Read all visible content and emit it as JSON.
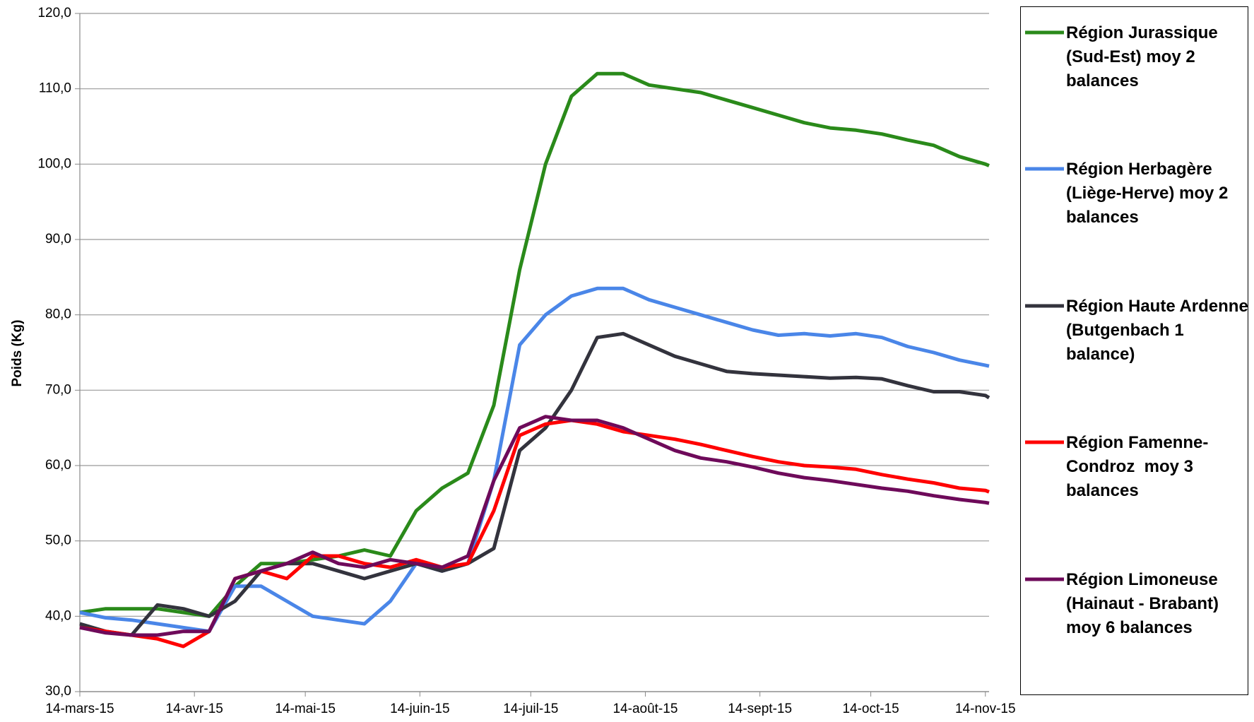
{
  "chart_data": {
    "type": "line",
    "y_label": "Poids (Kg)",
    "x": [
      "2015-03-14",
      "2015-03-21",
      "2015-03-28",
      "2015-04-04",
      "2015-04-11",
      "2015-04-18",
      "2015-04-25",
      "2015-05-02",
      "2015-05-09",
      "2015-05-16",
      "2015-05-23",
      "2015-05-30",
      "2015-06-06",
      "2015-06-13",
      "2015-06-20",
      "2015-06-27",
      "2015-07-04",
      "2015-07-11",
      "2015-07-18",
      "2015-07-25",
      "2015-08-01",
      "2015-08-08",
      "2015-08-15",
      "2015-08-22",
      "2015-08-29",
      "2015-09-05",
      "2015-09-12",
      "2015-09-19",
      "2015-09-26",
      "2015-10-03",
      "2015-10-10",
      "2015-10-17",
      "2015-10-24",
      "2015-10-31",
      "2015-11-07",
      "2015-11-14",
      "2015-11-15"
    ],
    "xlim": [
      "2015-03-14",
      "2015-11-15"
    ],
    "xticks": [
      {
        "value": "2015-03-14",
        "label": "14-mars-15"
      },
      {
        "value": "2015-04-14",
        "label": "14-avr-15"
      },
      {
        "value": "2015-05-14",
        "label": "14-mai-15"
      },
      {
        "value": "2015-06-14",
        "label": "14-juin-15"
      },
      {
        "value": "2015-07-14",
        "label": "14-juil-15"
      },
      {
        "value": "2015-08-14",
        "label": "14-août-15"
      },
      {
        "value": "2015-09-14",
        "label": "14-sept-15"
      },
      {
        "value": "2015-10-14",
        "label": "14-oct-15"
      },
      {
        "value": "2015-11-14",
        "label": "14-nov-15"
      }
    ],
    "ylim": [
      30,
      120
    ],
    "yticks": [
      {
        "value": 30,
        "label": "30,0"
      },
      {
        "value": 40,
        "label": "40,0"
      },
      {
        "value": 50,
        "label": "50,0"
      },
      {
        "value": 60,
        "label": "60,0"
      },
      {
        "value": 70,
        "label": "70,0"
      },
      {
        "value": 80,
        "label": "80,0"
      },
      {
        "value": 90,
        "label": "90,0"
      },
      {
        "value": 100,
        "label": "100,0"
      },
      {
        "value": 110,
        "label": "110,0"
      },
      {
        "value": 120,
        "label": "120,0"
      }
    ],
    "grid": true,
    "legend": "right",
    "series": [
      {
        "name": "Région Jurassique (Sud-Est) moy 2 balances",
        "color": "#2a8a1a",
        "values": [
          40.5,
          41,
          41,
          41,
          40.5,
          40,
          44,
          47,
          47,
          47.5,
          48,
          48.8,
          48,
          54,
          57,
          59,
          68,
          86,
          100,
          109,
          112,
          112,
          110.5,
          110,
          109.5,
          108.5,
          107.5,
          106.5,
          105.5,
          104.8,
          104.5,
          104,
          103.2,
          102.5,
          101,
          100,
          99.8
        ]
      },
      {
        "name": "Région Herbagère (Liège-Herve) moy 2 balances",
        "color": "#4a86e8",
        "values": [
          40.5,
          39.8,
          39.5,
          39,
          38.5,
          38,
          44,
          44,
          42,
          40,
          39.5,
          39,
          42,
          47,
          46,
          47,
          58,
          76,
          80,
          82.5,
          83.5,
          83.5,
          82,
          81,
          80,
          79,
          78,
          77.3,
          77.5,
          77.2,
          77.5,
          77,
          75.8,
          75,
          74,
          73.3,
          73.2
        ]
      },
      {
        "name": "Région Haute Ardenne (Butgenbach 1 balance)",
        "color": "#33333d",
        "values": [
          39,
          38,
          37.5,
          41.5,
          41,
          40,
          42,
          46,
          47,
          47,
          46,
          45,
          46,
          47,
          46,
          47,
          49,
          62,
          65,
          70,
          77,
          77.5,
          76,
          74.5,
          73.5,
          72.5,
          72.2,
          72,
          71.8,
          71.6,
          71.7,
          71.5,
          70.6,
          69.8,
          69.8,
          69.3,
          69
        ]
      },
      {
        "name": "Région Famenne-Condroz  moy 3 balances",
        "color": "#ff0000",
        "values": [
          38.5,
          38,
          37.5,
          37,
          36,
          38,
          45,
          46,
          45,
          48,
          48,
          47,
          46.5,
          47.5,
          46.5,
          47,
          54,
          64,
          65.5,
          66,
          65.5,
          64.5,
          64,
          63.5,
          62.8,
          62,
          61.2,
          60.5,
          60,
          59.8,
          59.5,
          58.8,
          58.2,
          57.7,
          57,
          56.7,
          56.5
        ]
      },
      {
        "name": "Région Limoneuse (Hainaut - Brabant)   moy 6 balances",
        "color": "#6e0a5a",
        "values": [
          38.5,
          37.8,
          37.5,
          37.5,
          38,
          38,
          45,
          46,
          47,
          48.5,
          47,
          46.5,
          47.5,
          47,
          46.5,
          48,
          58,
          65,
          66.5,
          66,
          66,
          65,
          63.5,
          62,
          61,
          60.5,
          59.8,
          59,
          58.4,
          58,
          57.5,
          57,
          56.6,
          56,
          55.5,
          55.1,
          55
        ]
      }
    ]
  }
}
